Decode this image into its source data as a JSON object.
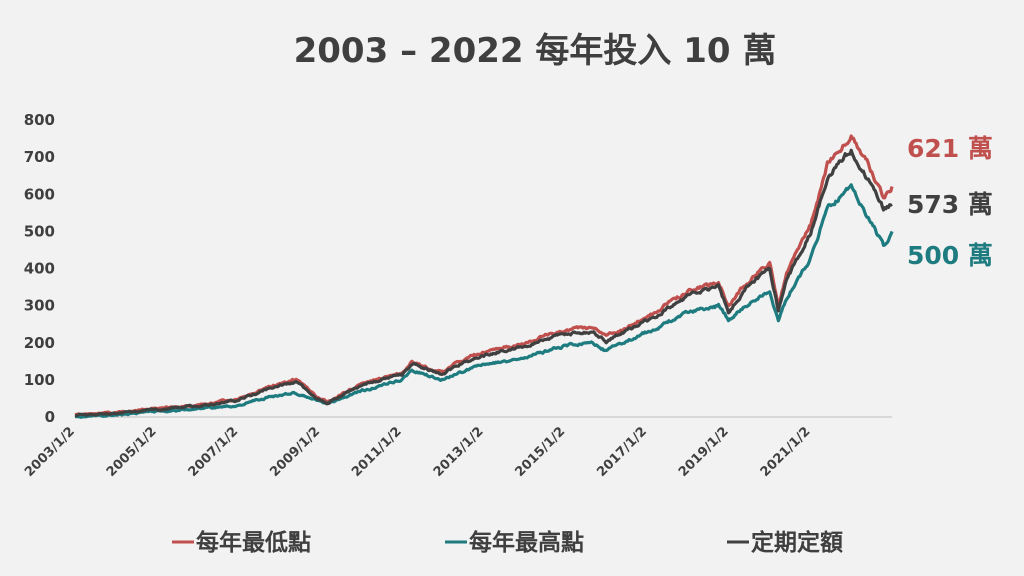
{
  "chart_data": {
    "type": "line",
    "title": "2003 – 2022 每年投入 10 萬",
    "xlabel": "",
    "ylabel": "",
    "ylim": [
      0,
      800
    ],
    "yticks": [
      0,
      100,
      200,
      300,
      400,
      500,
      600,
      700,
      800
    ],
    "xlim": [
      "2003-01-02",
      "2022-12-30"
    ],
    "xticks": [
      {
        "label": "2003/1/2",
        "date": "2003-01-02"
      },
      {
        "label": "2005/1/2",
        "date": "2005-01-02"
      },
      {
        "label": "2007/1/2",
        "date": "2007-01-02"
      },
      {
        "label": "2009/1/2",
        "date": "2009-01-02"
      },
      {
        "label": "2011/1/2",
        "date": "2011-01-02"
      },
      {
        "label": "2013/1/2",
        "date": "2013-01-02"
      },
      {
        "label": "2015/1/2",
        "date": "2015-01-02"
      },
      {
        "label": "2017/1/2",
        "date": "2017-01-02"
      },
      {
        "label": "2019/1/2",
        "date": "2019-01-02"
      },
      {
        "label": "2021/1/2",
        "date": "2021-01-02"
      }
    ],
    "grid": false,
    "legend_position": "bottom",
    "series": [
      {
        "name": "每年最低點",
        "color": "#c0504d",
        "end_label": "621 萬",
        "x": [
          "2003-01-02",
          "2004-01-02",
          "2005-01-02",
          "2006-01-02",
          "2007-01-02",
          "2007-10-30",
          "2008-06-01",
          "2008-12-01",
          "2009-03-01",
          "2010-01-02",
          "2011-01-02",
          "2011-04-01",
          "2011-12-15",
          "2012-06-01",
          "2013-01-02",
          "2014-01-02",
          "2014-12-15",
          "2015-09-01",
          "2016-01-02",
          "2017-01-02",
          "2018-01-02",
          "2018-10-01",
          "2018-12-30",
          "2019-06-01",
          "2020-01-02",
          "2020-03-20",
          "2020-06-01",
          "2021-01-02",
          "2021-06-01",
          "2021-12-30",
          "2022-06-01",
          "2022-10-15",
          "2022-12-30"
        ],
        "y": [
          5,
          12,
          22,
          32,
          48,
          85,
          100,
          55,
          40,
          90,
          120,
          150,
          120,
          150,
          175,
          200,
          235,
          240,
          215,
          270,
          340,
          365,
          300,
          360,
          420,
          300,
          390,
          520,
          680,
          760,
          680,
          590,
          621
        ]
      },
      {
        "name": "每年最高點",
        "color": "#1e7b7f",
        "end_label": "500 萬",
        "x": [
          "2003-01-02",
          "2004-01-02",
          "2005-01-02",
          "2006-01-02",
          "2007-01-02",
          "2007-10-30",
          "2008-06-01",
          "2008-12-01",
          "2009-03-01",
          "2010-01-02",
          "2011-01-02",
          "2011-04-01",
          "2011-12-15",
          "2012-06-01",
          "2013-01-02",
          "2014-01-02",
          "2014-12-15",
          "2015-09-01",
          "2016-01-02",
          "2017-01-02",
          "2018-01-02",
          "2018-10-01",
          "2018-12-30",
          "2019-06-01",
          "2020-01-02",
          "2020-03-20",
          "2020-06-01",
          "2021-01-02",
          "2021-06-01",
          "2021-12-30",
          "2022-06-01",
          "2022-10-15",
          "2022-12-30"
        ],
        "y": [
          0,
          5,
          15,
          22,
          32,
          55,
          65,
          45,
          32,
          70,
          100,
          125,
          100,
          120,
          140,
          160,
          190,
          200,
          178,
          230,
          280,
          300,
          262,
          300,
          340,
          260,
          320,
          430,
          560,
          620,
          540,
          460,
          500
        ]
      },
      {
        "name": "定期定額",
        "color": "#404040",
        "end_label": "573 萬",
        "x": [
          "2003-01-02",
          "2004-01-02",
          "2005-01-02",
          "2006-01-02",
          "2007-01-02",
          "2007-10-30",
          "2008-06-01",
          "2008-12-01",
          "2009-03-01",
          "2010-01-02",
          "2011-01-02",
          "2011-04-01",
          "2011-12-15",
          "2012-06-01",
          "2013-01-02",
          "2014-01-02",
          "2014-12-15",
          "2015-09-01",
          "2016-01-02",
          "2017-01-02",
          "2018-01-02",
          "2018-10-01",
          "2018-12-30",
          "2019-06-01",
          "2020-01-02",
          "2020-03-20",
          "2020-06-01",
          "2021-01-02",
          "2021-06-01",
          "2021-12-30",
          "2022-06-01",
          "2022-10-15",
          "2022-12-30"
        ],
        "y": [
          3,
          10,
          20,
          30,
          45,
          80,
          95,
          50,
          38,
          85,
          115,
          145,
          115,
          142,
          165,
          192,
          225,
          230,
          205,
          258,
          325,
          350,
          285,
          345,
          400,
          285,
          370,
          495,
          650,
          720,
          640,
          560,
          573
        ]
      }
    ],
    "legend": [
      {
        "series": 0,
        "label": "每年最低點"
      },
      {
        "series": 1,
        "label": "每年最高點"
      },
      {
        "series": 2,
        "label": "定期定額"
      }
    ]
  }
}
